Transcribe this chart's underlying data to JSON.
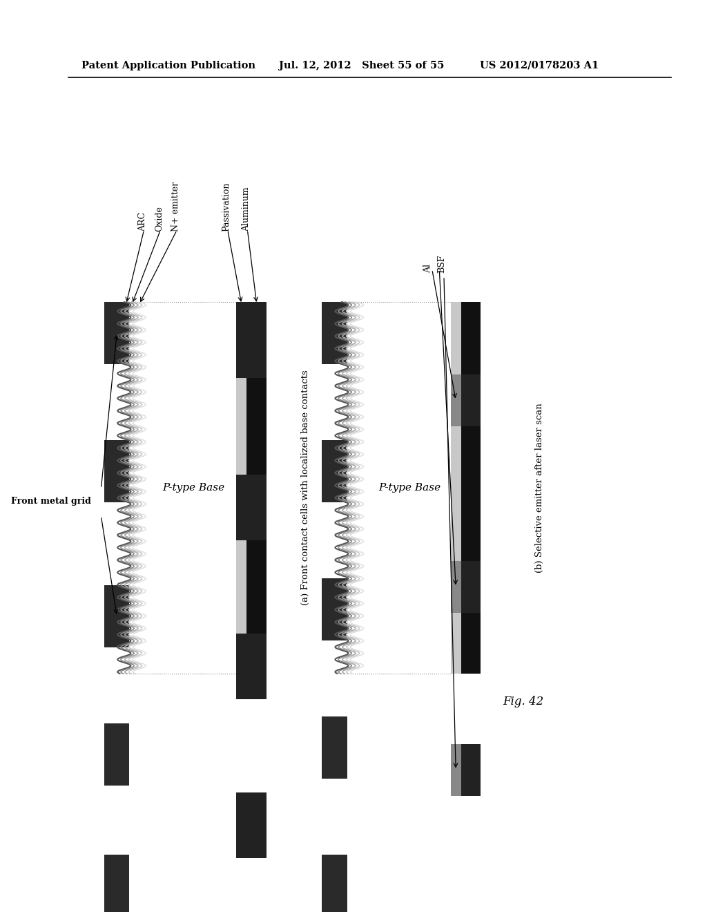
{
  "header_left": "Patent Application Publication",
  "header_mid": "Jul. 12, 2012   Sheet 55 of 55",
  "header_right": "US 2012/0178203 A1",
  "fig_label": "Fig. 42",
  "caption_a": "(a) Front contact cells with localized base contacts",
  "caption_b": "(b) Selective emitter after laser scan",
  "label_arc": "ARC",
  "label_oxide": "Oxide",
  "label_n_emitter": "N+ emitter",
  "label_passivation": "Passivation",
  "label_aluminum": "Aluminum",
  "label_front_metal": "Front metal grid",
  "label_p_base_a": "P-type Base",
  "label_p_base_b": "P-type Base",
  "label_al": "Al",
  "label_bsf": "BSF",
  "bg_color": "#ffffff"
}
